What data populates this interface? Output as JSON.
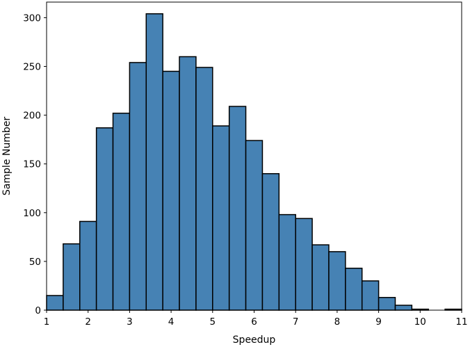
{
  "chart_data": {
    "type": "bar",
    "subtype": "histogram",
    "title": "",
    "xlabel": "Speedup",
    "ylabel": "Sample Number",
    "xlim": [
      1,
      11
    ],
    "ylim": [
      0,
      316
    ],
    "grid": false,
    "legend": "none",
    "bar_color": "#4682b4",
    "edge_color": "#000000",
    "x_ticks": [
      1,
      2,
      3,
      4,
      5,
      6,
      7,
      8,
      9,
      10,
      11
    ],
    "y_ticks": [
      0,
      50,
      100,
      150,
      200,
      250,
      300
    ],
    "bin_edges": [
      1.0,
      1.4,
      1.8,
      2.2,
      2.6,
      3.0,
      3.4,
      3.8,
      4.2,
      4.6,
      5.0,
      5.4,
      5.8,
      6.2,
      6.6,
      7.0,
      7.4,
      7.8,
      8.2,
      8.6,
      9.0,
      9.4,
      9.8,
      10.2,
      10.6,
      11.0
    ],
    "values": [
      15,
      68,
      91,
      187,
      202,
      254,
      304,
      245,
      260,
      249,
      189,
      209,
      174,
      140,
      98,
      94,
      67,
      60,
      43,
      30,
      13,
      5,
      1,
      0,
      1
    ]
  }
}
